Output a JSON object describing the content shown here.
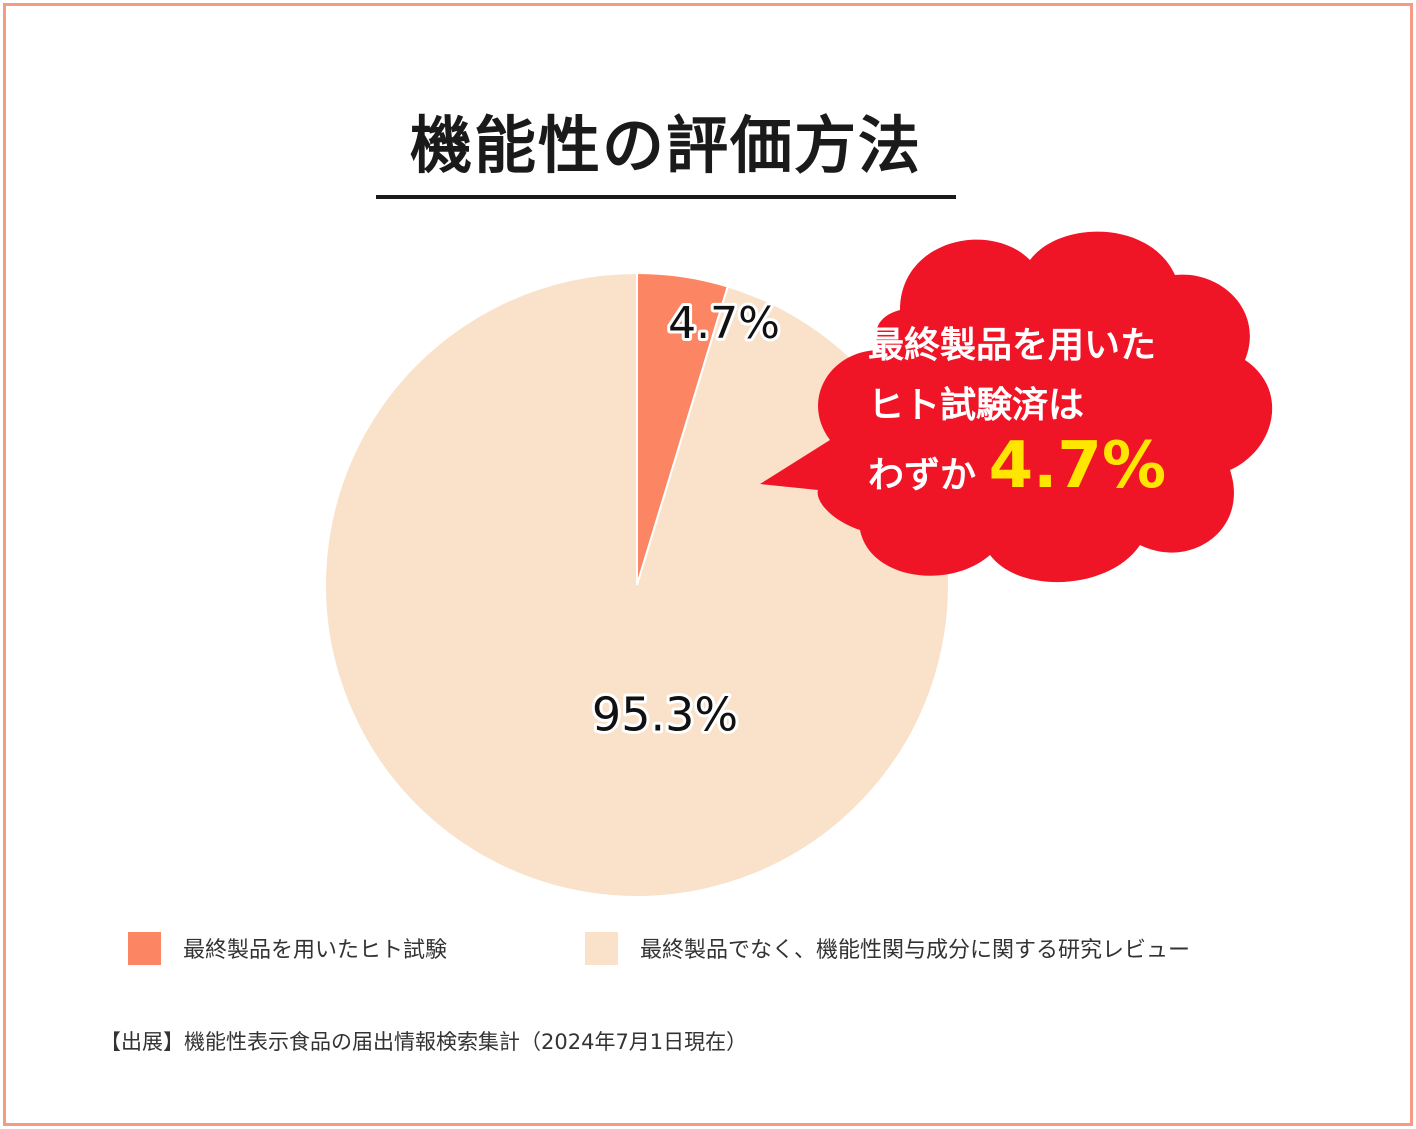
{
  "title": "機能性の評価方法",
  "chart_data": {
    "type": "pie",
    "slices": [
      {
        "label": "最終製品を用いたヒト試験",
        "value": 4.7,
        "display": "4.7%",
        "color": "#fc8563"
      },
      {
        "label": "最終製品でなく、機能性関与成分に関する研究レビュー",
        "value": 95.3,
        "display": "95.3%",
        "color": "#fae1ca"
      }
    ]
  },
  "callout": {
    "line1": "最終製品を用いた",
    "line2": "ヒト試験済は",
    "line3_prefix": "わずか",
    "line3_value": "4.7%",
    "bg_color": "#f01427",
    "value_color": "#ffe600"
  },
  "source": "【出展】機能性表示食品の届出情報検索集計（2024年7月1日現在）"
}
